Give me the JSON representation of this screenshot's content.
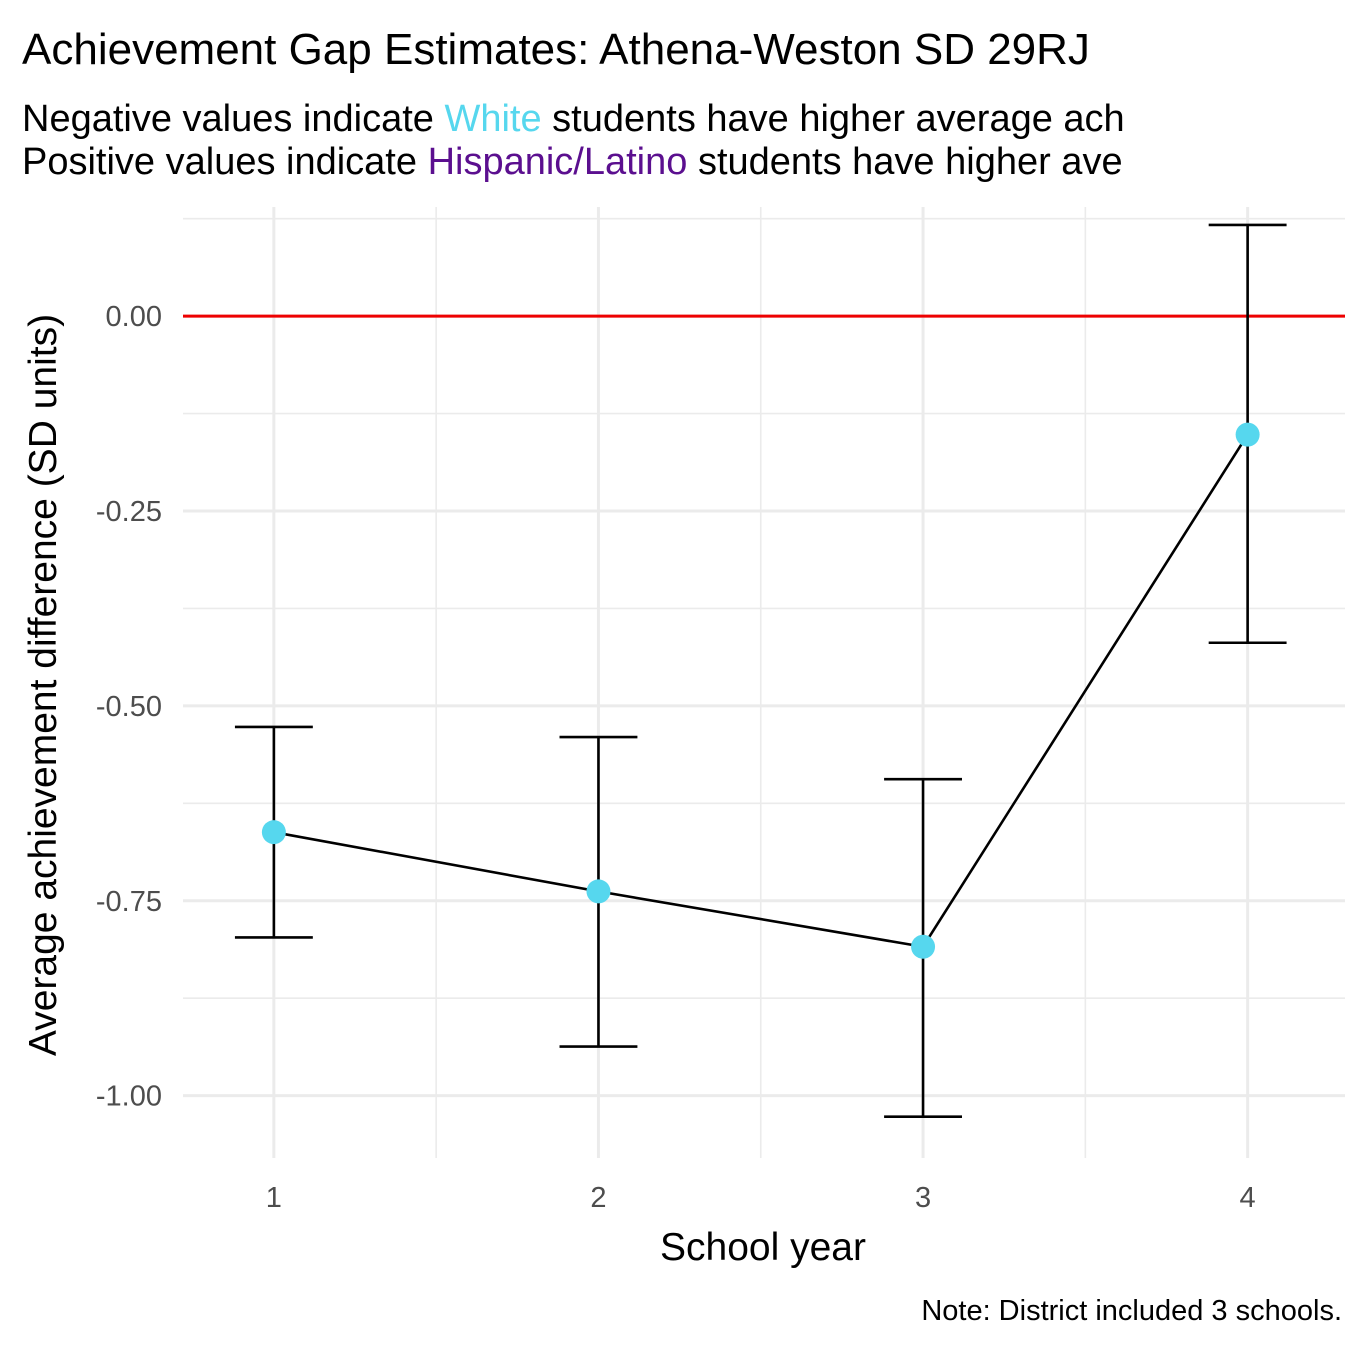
{
  "chart_data": {
    "type": "line",
    "title": "Achievement Gap Estimates: Athena-Weston SD 29RJ",
    "subtitle_lines": [
      {
        "before": "Negative values indicate ",
        "highlight": "White",
        "after": " students have higher average ach",
        "highlight_color": "#56D7EE"
      },
      {
        "before": "Positive values indicate ",
        "highlight": "Hispanic/Latino",
        "after": " students have higher ave",
        "highlight_color": "#5B0F8F"
      }
    ],
    "xlabel": "School year",
    "ylabel": "Average achievement difference (SD units)",
    "caption": "Note: District included 3 schools.",
    "x": [
      1,
      2,
      3,
      4
    ],
    "x_ticks": [
      "1",
      "2",
      "3",
      "4"
    ],
    "y_ticks": [
      "0.00",
      "-0.25",
      "-0.50",
      "-0.75",
      "-1.00"
    ],
    "y_tick_values": [
      0,
      -0.25,
      -0.5,
      -0.75,
      -1.0
    ],
    "xlim": [
      0.72,
      4.3
    ],
    "ylim": [
      -1.08,
      0.14
    ],
    "reference_line": {
      "y": 0,
      "color": "#EE0000"
    },
    "series": [
      {
        "values": [
          -0.662,
          -0.738,
          -0.809,
          -0.152
        ],
        "lower": [
          -0.797,
          -0.937,
          -1.027,
          -0.419
        ],
        "upper": [
          -0.527,
          -0.54,
          -0.594,
          0.117
        ],
        "point_color": "#56D7EE",
        "line_color": "#000000"
      }
    ],
    "grid": true,
    "legend": "none"
  }
}
